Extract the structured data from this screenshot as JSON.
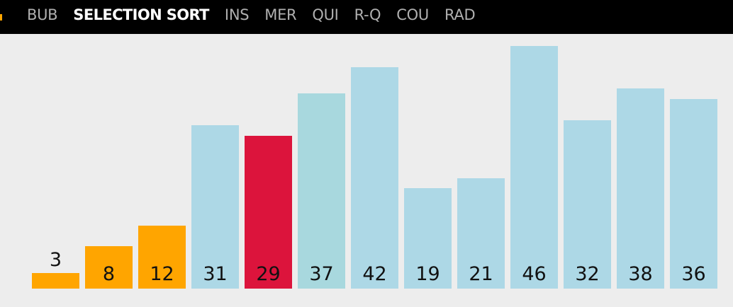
{
  "nav": {
    "items": [
      {
        "label": "BUB",
        "active": false
      },
      {
        "label": "SELECTION SORT",
        "active": true
      },
      {
        "label": "INS",
        "active": false
      },
      {
        "label": "MER",
        "active": false
      },
      {
        "label": "QUI",
        "active": false
      },
      {
        "label": "R-Q",
        "active": false
      },
      {
        "label": "COU",
        "active": false
      },
      {
        "label": "RAD",
        "active": false
      }
    ]
  },
  "colors": {
    "sorted": "#ffa500",
    "current_min": "#dc143c",
    "scanning": "#a8d8de",
    "unsorted": "#add8e6",
    "background": "#ededed",
    "header": "#000000"
  },
  "bars": [
    {
      "value": 3,
      "label": "3",
      "state": "sorted"
    },
    {
      "value": 8,
      "label": "8",
      "state": "sorted"
    },
    {
      "value": 12,
      "label": "12",
      "state": "sorted"
    },
    {
      "value": 31,
      "label": "31",
      "state": "unsorted"
    },
    {
      "value": 29,
      "label": "29",
      "state": "current_min"
    },
    {
      "value": 37,
      "label": "37",
      "state": "scanning"
    },
    {
      "value": 42,
      "label": "42",
      "state": "unsorted"
    },
    {
      "value": 19,
      "label": "19",
      "state": "unsorted"
    },
    {
      "value": 21,
      "label": "21",
      "state": "unsorted"
    },
    {
      "value": 46,
      "label": "46",
      "state": "unsorted"
    },
    {
      "value": 32,
      "label": "32",
      "state": "unsorted"
    },
    {
      "value": 38,
      "label": "38",
      "state": "unsorted"
    },
    {
      "value": 36,
      "label": "36",
      "state": "unsorted"
    }
  ]
}
